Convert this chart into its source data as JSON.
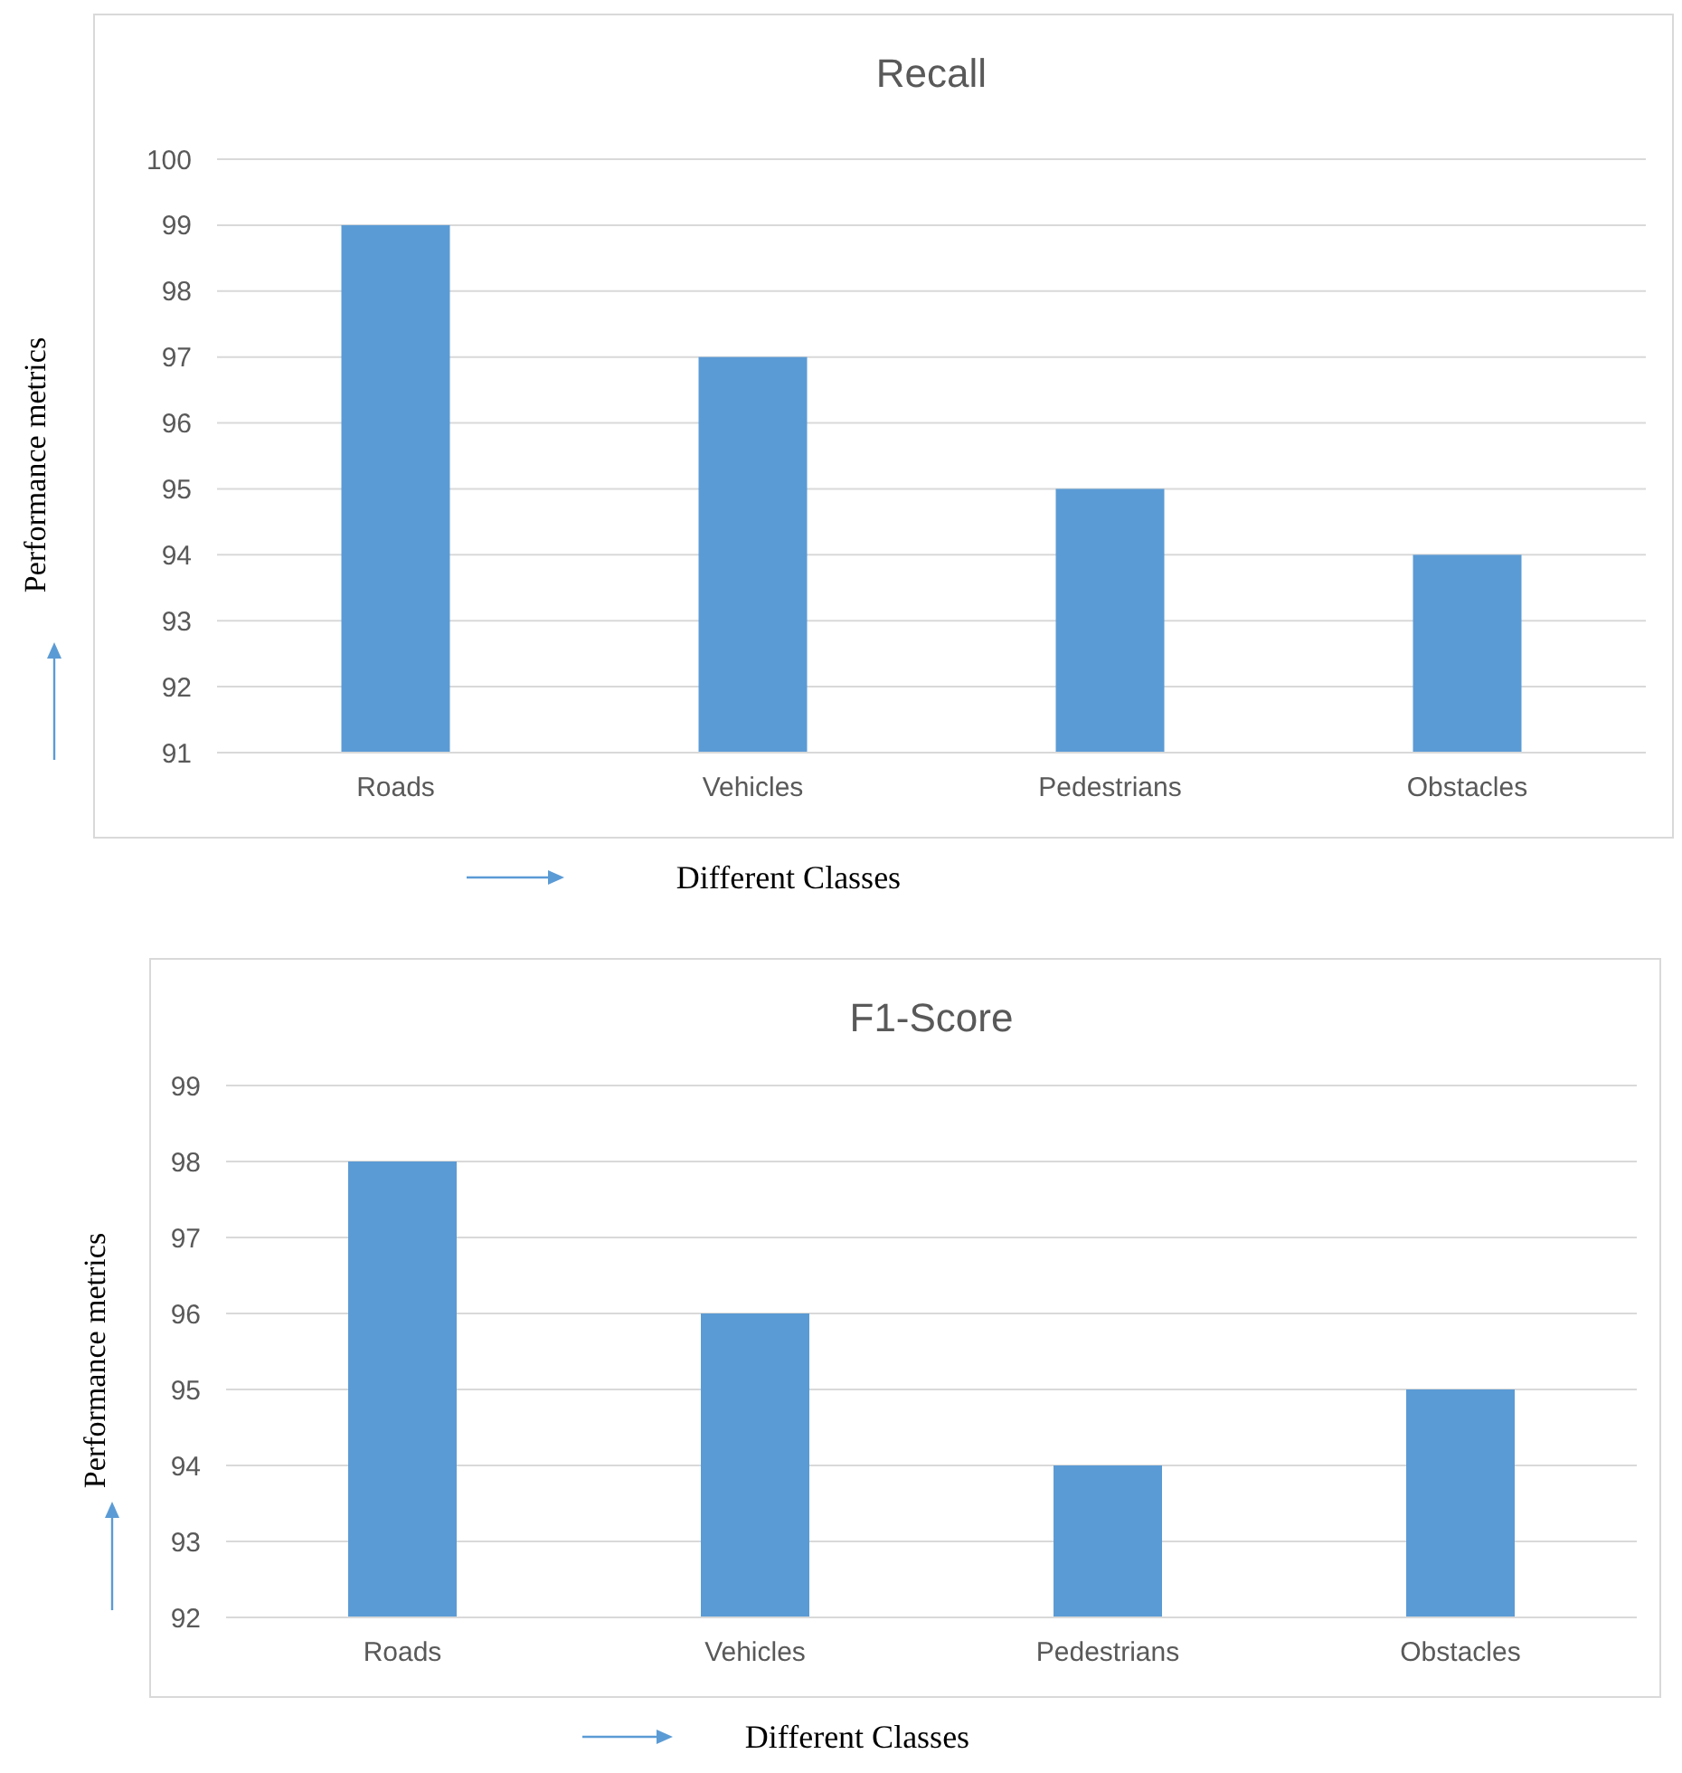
{
  "chart_data": [
    {
      "type": "bar",
      "title": "Recall",
      "xlabel": "Different Classes",
      "ylabel": "Performance metrics",
      "categories": [
        "Roads",
        "Vehicles",
        "Pedestrians",
        "Obstacles"
      ],
      "values": [
        99,
        97,
        95,
        94
      ],
      "color": "#5b9bd5",
      "ylim": [
        91,
        100
      ],
      "yticks": [
        91,
        92,
        93,
        94,
        95,
        96,
        97,
        98,
        99,
        100
      ],
      "grid": "y"
    },
    {
      "type": "bar",
      "title": "F1-Score",
      "xlabel": "Different Classes",
      "ylabel": "Performance metrics",
      "categories": [
        "Roads",
        "Vehicles",
        "Pedestrians",
        "Obstacles"
      ],
      "values": [
        98,
        96,
        94,
        95
      ],
      "color": "#5b9bd5",
      "ylim": [
        92,
        99
      ],
      "yticks": [
        92,
        93,
        94,
        95,
        96,
        97,
        98,
        99
      ],
      "grid": "y"
    }
  ]
}
